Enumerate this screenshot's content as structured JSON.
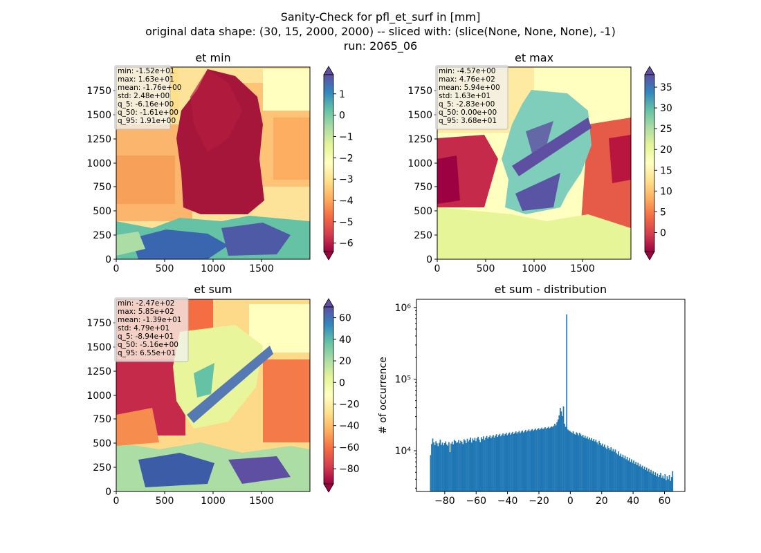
{
  "figure": {
    "title_line1": "Sanity-Check for pfl_et_surf in [mm]",
    "title_line2": "original data shape: (30, 15, 2000, 2000) -- sliced with: (slice(None, None, None), -1)",
    "title_line3": "run: 2065_06"
  },
  "colors": {
    "spectral": [
      "#9e0142",
      "#d53e4f",
      "#f46d43",
      "#fdae61",
      "#fee08b",
      "#ffffbf",
      "#e6f598",
      "#abdda4",
      "#66c2a5",
      "#3288bd",
      "#5e4fa2"
    ],
    "hist_bar": "#1f77b4",
    "stats_box_bg": "#f2f2f2",
    "stats_box_border": "#bbbbbb"
  },
  "chart_data": [
    {
      "type": "heatmap",
      "title": "et min",
      "xlim": [
        0,
        2000
      ],
      "ylim": [
        0,
        2000
      ],
      "xticks": [
        "0",
        "500",
        "1000",
        "1500"
      ],
      "yticks": [
        "0",
        "250",
        "500",
        "750",
        "1000",
        "1250",
        "1500",
        "1750"
      ],
      "colorbar_range": [
        -6.4,
        1.9
      ],
      "colorbar_ticks": [
        "−6",
        "−5",
        "−4",
        "−3",
        "−2",
        "−1",
        "0",
        "1"
      ],
      "colorbar_tick_values": [
        -6,
        -5,
        -4,
        -3,
        -2,
        -1,
        0,
        1
      ],
      "stats": [
        "min: -1.52e+01",
        "max: 1.63e+01",
        "mean: -1.76e+00",
        "std: 2.48e+00",
        "q_5: -6.16e+00",
        "q_50: -1.61e+00",
        "q_95: 1.91e+00"
      ]
    },
    {
      "type": "heatmap",
      "title": "et max",
      "xlim": [
        0,
        2000
      ],
      "ylim": [
        0,
        2000
      ],
      "xticks": [
        "0",
        "500",
        "1000",
        "1500"
      ],
      "yticks": [
        "0",
        "250",
        "500",
        "750",
        "1000",
        "1250",
        "1500",
        "1750"
      ],
      "colorbar_range": [
        -4.57,
        38
      ],
      "colorbar_ticks": [
        "0",
        "5",
        "10",
        "15",
        "20",
        "25",
        "30",
        "35"
      ],
      "colorbar_tick_values": [
        0,
        5,
        10,
        15,
        20,
        25,
        30,
        35
      ],
      "stats": [
        "min: -4.57e+00",
        "max: 4.76e+02",
        "mean: 5.94e+00",
        "std: 1.63e+01",
        "q_5: -2.83e+00",
        "q_50: 0.00e+00",
        "q_95: 3.68e+01"
      ]
    },
    {
      "type": "heatmap",
      "title": "et sum",
      "xlim": [
        0,
        2000
      ],
      "ylim": [
        0,
        2000
      ],
      "xticks": [
        "0",
        "500",
        "1000",
        "1500"
      ],
      "yticks": [
        "0",
        "250",
        "500",
        "750",
        "1000",
        "1250",
        "1500",
        "1750"
      ],
      "colorbar_range": [
        -94,
        70
      ],
      "colorbar_ticks": [
        "−80",
        "−60",
        "−40",
        "−20",
        "0",
        "20",
        "40",
        "60"
      ],
      "colorbar_tick_values": [
        -80,
        -60,
        -40,
        -20,
        0,
        20,
        40,
        60
      ],
      "stats": [
        "min: -2.47e+02",
        "max: 5.85e+02",
        "mean: -1.39e+01",
        "std: 4.79e+01",
        "q_5: -8.94e+01",
        "q_50: -5.16e+00",
        "q_95: 6.55e+01"
      ]
    },
    {
      "type": "bar",
      "title": "et sum - distribution",
      "xlabel": "",
      "ylabel": "# of occurrence",
      "xlim": [
        -98,
        73
      ],
      "ylog": true,
      "ylim": [
        2700,
        1300000
      ],
      "xticks": [
        "−80",
        "−60",
        "−40",
        "−20",
        "0",
        "20",
        "40",
        "60"
      ],
      "xtick_values": [
        -80,
        -60,
        -40,
        -20,
        0,
        20,
        40,
        60
      ],
      "yticks": [
        "10⁴",
        "10⁵",
        "10⁶"
      ],
      "ytick_values": [
        10000,
        100000,
        1000000
      ],
      "bin_range": [
        -89.4,
        65.5
      ],
      "values_description_free": true,
      "values": [
        8700,
        12400,
        14800,
        13100,
        12000,
        13600,
        12700,
        11600,
        12900,
        14300,
        12100,
        13000,
        11900,
        12800,
        13500,
        12200,
        11800,
        13200,
        9600,
        12600,
        13400,
        12300,
        14200,
        13700,
        12900,
        13100,
        14100,
        12700,
        13800,
        13300,
        12400,
        14500,
        13900,
        12800,
        14700,
        13500,
        14200,
        15300,
        13000,
        14800,
        14000,
        15100,
        13600,
        14900,
        15700,
        14300,
        13200,
        15500,
        14600,
        15900,
        14200,
        15200,
        16100,
        14800,
        15600,
        16400,
        15000,
        15800,
        16600,
        15300,
        16200,
        17000,
        15600,
        16500,
        17200,
        15900,
        16800,
        17500,
        16200,
        17100,
        17800,
        16500,
        17300,
        18000,
        16800,
        17600,
        18300,
        17100,
        17900,
        18600,
        17400,
        18200,
        18900,
        17700,
        18500,
        19200,
        18000,
        18800,
        19500,
        18400,
        19100,
        19800,
        18700,
        19400,
        20100,
        19000,
        19700,
        20400,
        19400,
        20000,
        20700,
        19700,
        20300,
        21000,
        20000,
        20600,
        21300,
        20300,
        20900,
        21600,
        20600,
        21200,
        21900,
        21500,
        22400,
        23800,
        22600,
        25100,
        27300,
        31200,
        39800,
        35400,
        30500,
        41500,
        23800,
        21600,
        800000,
        19800,
        19200,
        18900,
        18300,
        17800,
        18700,
        17200,
        16800,
        18100,
        17500,
        16400,
        17800,
        16900,
        15900,
        16700,
        15300,
        16200,
        14900,
        15800,
        14500,
        15300,
        14200,
        15000,
        13800,
        14600,
        13500,
        14300,
        13100,
        12300,
        13700,
        12800,
        11900,
        12600,
        11400,
        12200,
        11100,
        10600,
        11800,
        10900,
        10300,
        11200,
        9900,
        10600,
        9700,
        10400,
        9300,
        8900,
        9800,
        8500,
        9100,
        8200,
        8800,
        7900,
        8500,
        7600,
        8200,
        7300,
        7900,
        7000,
        7600,
        6800,
        7300,
        6600,
        7000,
        6300,
        6800,
        6100,
        6500,
        5900,
        6200,
        5600,
        6000,
        5400,
        5800,
        5200,
        5600,
        5000,
        5400,
        4800,
        5200,
        4600,
        5000,
        4400,
        4800,
        4300,
        4600,
        4900,
        4200,
        4500,
        4100,
        4700,
        3900,
        4400,
        4000,
        4600,
        3800,
        4300,
        5200
      ]
    }
  ]
}
